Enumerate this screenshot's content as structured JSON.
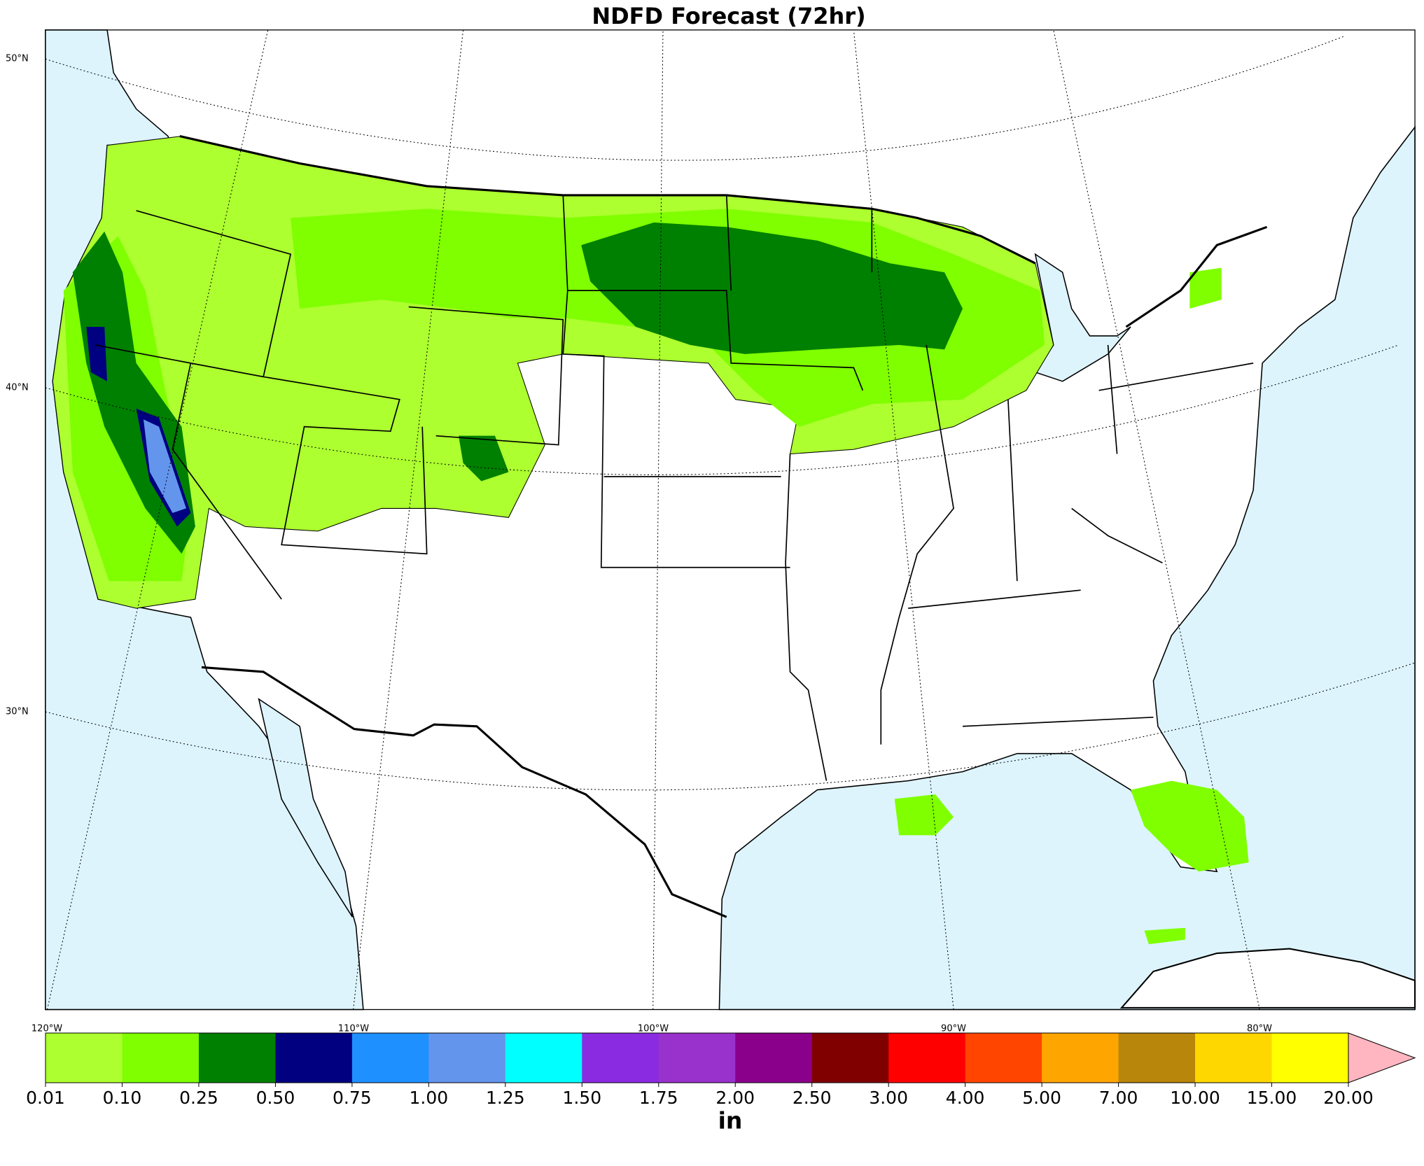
{
  "title": "NDFD Forecast (72hr)",
  "map": {
    "lat_labels": [
      "50°N",
      "40°N",
      "30°N"
    ],
    "lon_labels": [
      "120°W",
      "110°W",
      "100°W",
      "90°W",
      "80°W"
    ]
  },
  "colorbar": {
    "ticks": [
      {
        "value": 0.01,
        "label": "0.01"
      },
      {
        "value": 0.1,
        "label": "0.10"
      },
      {
        "value": 0.25,
        "label": "0.25"
      },
      {
        "value": 0.5,
        "label": "0.50"
      },
      {
        "value": 0.75,
        "label": "0.75"
      },
      {
        "value": 1,
        "label": "1.00"
      },
      {
        "value": 1.25,
        "label": "1.25"
      },
      {
        "value": 1.5,
        "label": "1.50"
      },
      {
        "value": 1.75,
        "label": "1.75"
      },
      {
        "value": 2,
        "label": "2.00"
      },
      {
        "value": 2.5,
        "label": "2.50"
      },
      {
        "value": 3,
        "label": "3.00"
      },
      {
        "value": 4,
        "label": "4.00"
      },
      {
        "value": 5,
        "label": "5.00"
      },
      {
        "value": 7,
        "label": "7.00"
      },
      {
        "value": 10,
        "label": "10.00"
      },
      {
        "value": 15,
        "label": "15.00"
      },
      {
        "value": 20,
        "label": "20.00"
      }
    ],
    "colors": [
      "#adff2f",
      "#7fff00",
      "#008000",
      "#000080",
      "#1e90ff",
      "#6495ed",
      "#00ffff",
      "#8a2be2",
      "#9932cc",
      "#8b008b",
      "#800000",
      "#ff0000",
      "#ff4500",
      "#ffa500",
      "#b8860b",
      "#ffd700",
      "#ffff00"
    ],
    "extend_color": "#ffb6c1",
    "unit": "in"
  }
}
